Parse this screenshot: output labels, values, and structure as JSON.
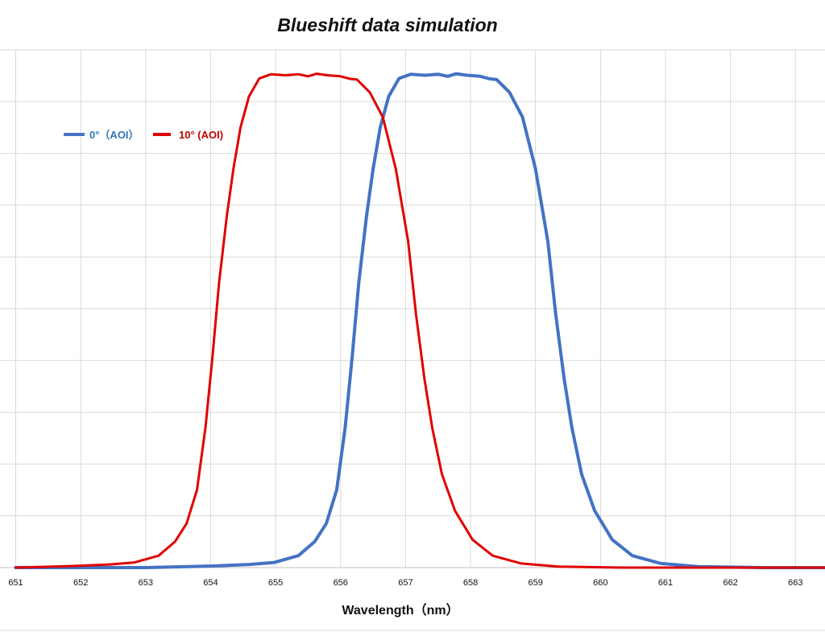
{
  "chart_data": {
    "type": "line",
    "title": "Blueshift data simulation",
    "xlabel": "Wavelength（nm）",
    "ylabel": "",
    "xlim": [
      651,
      663.45
    ],
    "ylim": [
      0,
      100
    ],
    "xticks": [
      "651",
      "652",
      "653",
      "654",
      "655",
      "656",
      "657",
      "658",
      "659",
      "660",
      "661",
      "662",
      "663"
    ],
    "grid": true,
    "legend_position": "top-left",
    "series": [
      {
        "name": "0°（AOI）",
        "color": "#4472C4",
        "style": "solid",
        "x": [
          651,
          653,
          654,
          654.6,
          654.98,
          655.35,
          655.6,
          655.78,
          655.94,
          656.07,
          656.18,
          656.28,
          656.4,
          656.5,
          656.61,
          656.74,
          656.9,
          657.08,
          657.3,
          657.5,
          657.65,
          657.78,
          657.95,
          658.15,
          658.3,
          658.4,
          658.6,
          658.8,
          659.0,
          659.19,
          659.31,
          659.44,
          659.56,
          659.71,
          659.91,
          660.18,
          660.49,
          660.93,
          661.5,
          662.5,
          663.45
        ],
        "y": [
          0,
          0,
          0.3,
          0.6,
          1,
          2.3,
          5,
          8.5,
          15,
          27,
          41,
          55,
          68,
          77,
          85,
          91,
          94.5,
          95.3,
          95.1,
          95.3,
          94.9,
          95.4,
          95.1,
          94.9,
          94.4,
          94.3,
          91.8,
          87,
          77,
          63,
          49,
          36.5,
          27,
          18,
          11,
          5.4,
          2.3,
          0.8,
          0.2,
          0,
          0
        ]
      },
      {
        "name": "10° (AOI)",
        "color": "#E00000",
        "style": "solid-with-dashed-edges",
        "x": [
          651,
          651.85,
          652.45,
          652.83,
          653.2,
          653.45,
          653.63,
          653.79,
          653.92,
          654.03,
          654.13,
          654.25,
          654.35,
          654.46,
          654.59,
          654.75,
          654.93,
          655.15,
          655.35,
          655.5,
          655.63,
          655.8,
          656.0,
          656.15,
          656.25,
          656.45,
          656.65,
          656.85,
          657.04,
          657.16,
          657.29,
          657.41,
          657.56,
          657.76,
          658.03,
          658.34,
          658.78,
          659.35,
          660.35,
          663.45
        ],
        "y": [
          0,
          0.3,
          0.6,
          1,
          2.3,
          5,
          8.5,
          15,
          27,
          41,
          55,
          68,
          77,
          85,
          91,
          94.5,
          95.3,
          95.1,
          95.3,
          94.9,
          95.4,
          95.1,
          94.9,
          94.4,
          94.3,
          91.8,
          87,
          77,
          63,
          49,
          36.5,
          27,
          18,
          11,
          5.4,
          2.3,
          0.8,
          0.2,
          0,
          0
        ]
      }
    ]
  }
}
